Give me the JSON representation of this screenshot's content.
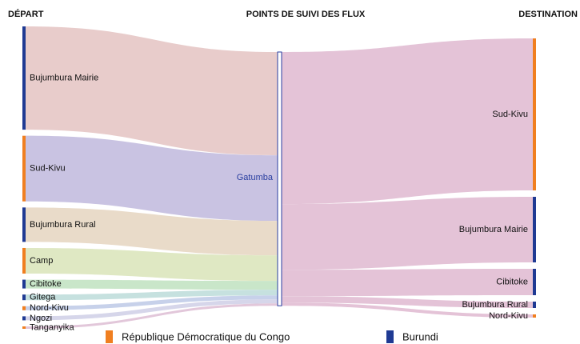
{
  "chart_data": {
    "type": "sankey",
    "headers": [
      "DÉPART",
      "POINTS DE SUIVI DES FLUX",
      "DESTINATION"
    ],
    "legend": [
      {
        "name": "République Démocratique du Congo",
        "color": "#f07f20"
      },
      {
        "name": "Burundi",
        "color": "#1f3a93"
      }
    ],
    "hub": "Gatumba",
    "hub_color": "#2a3fa0",
    "link_color": "#e4c3d7",
    "sources": [
      {
        "name": "Bujumbura Mairie",
        "value": 129,
        "group": 1,
        "color": "#e8cccb"
      },
      {
        "name": "Sud-Kivu",
        "value": 82,
        "group": 0,
        "color": "#c9c3e2"
      },
      {
        "name": "Bujumbura Rural",
        "value": 43,
        "group": 1,
        "color": "#e9dbc9"
      },
      {
        "name": "Camp",
        "value": 32,
        "group": 0,
        "color": "#dfe8c3"
      },
      {
        "name": "Cibitoke",
        "value": 11,
        "group": 1,
        "color": "#c9e6c9"
      },
      {
        "name": "Gitega",
        "value": 7,
        "group": 1,
        "color": "#c6e1df"
      },
      {
        "name": "Nord-Kivu",
        "value": 5,
        "group": 0,
        "color": "#c7d1ea"
      },
      {
        "name": "Ngozi",
        "value": 5,
        "group": 1,
        "color": "#d6d6ea"
      },
      {
        "name": "Tanganyika",
        "value": 3,
        "group": 0,
        "color": "#e2c7da"
      }
    ],
    "destinations": [
      {
        "name": "Sud-Kivu",
        "value": 190,
        "group": 0
      },
      {
        "name": "Bujumbura Mairie",
        "value": 82,
        "group": 1
      },
      {
        "name": "Cibitoke",
        "value": 33,
        "group": 1
      },
      {
        "name": "Bujumbura Rural",
        "value": 8,
        "group": 1
      },
      {
        "name": "Nord-Kivu",
        "value": 4,
        "group": 0
      }
    ]
  }
}
